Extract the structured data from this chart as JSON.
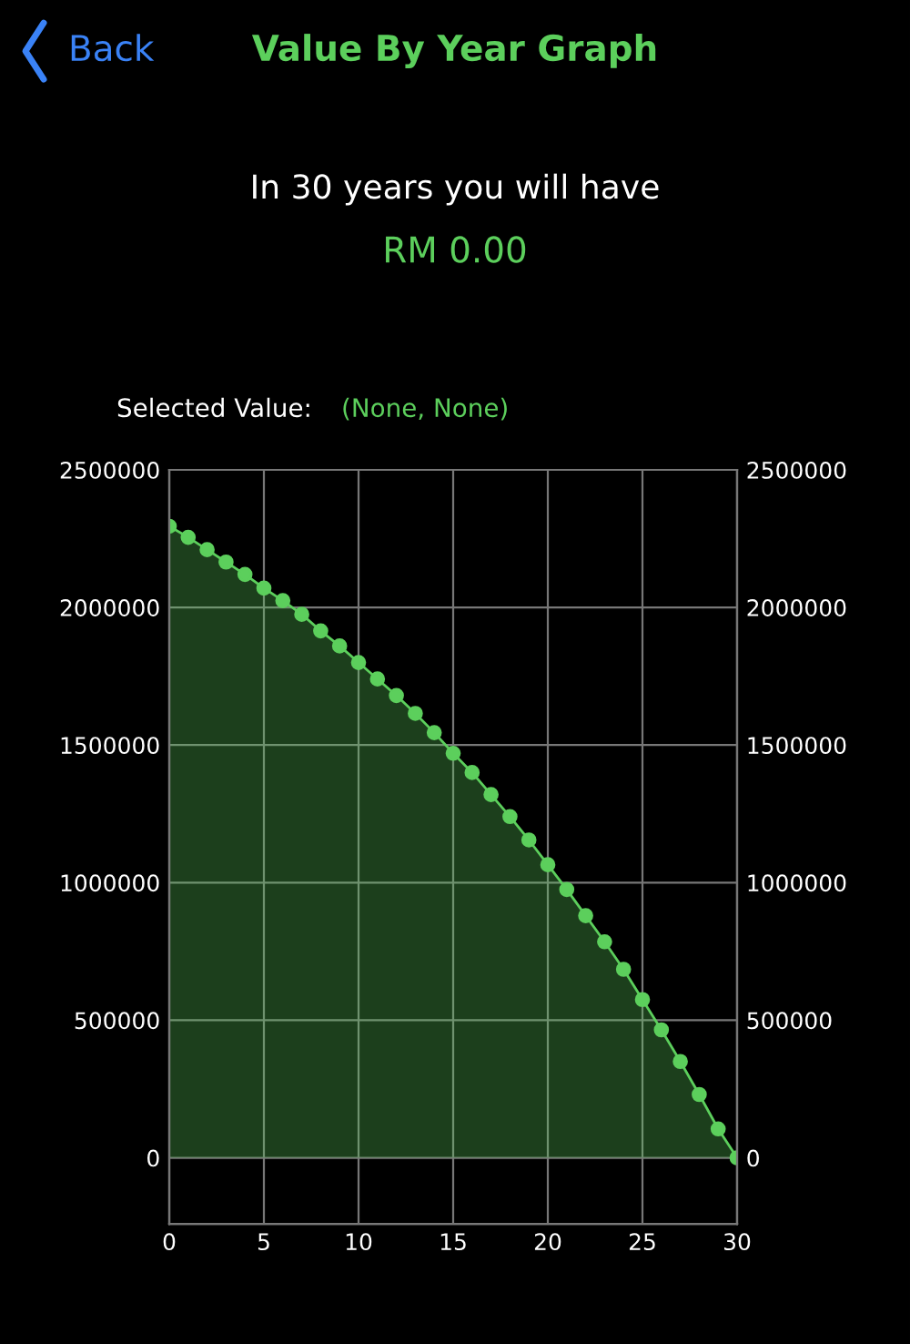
{
  "chart_data": {
    "type": "area",
    "title": "Value By Year Graph",
    "subtitle": "In 30 years you will have",
    "annotations": [
      "Back",
      "RM 0.00",
      "Selected Value:",
      "(None, None)"
    ],
    "x": [
      0,
      1,
      2,
      3,
      4,
      5,
      6,
      7,
      8,
      9,
      10,
      11,
      12,
      13,
      14,
      15,
      16,
      17,
      18,
      19,
      20,
      21,
      22,
      23,
      24,
      25,
      26,
      27,
      28,
      29,
      30
    ],
    "series": [
      {
        "color": "#5ccf5c",
        "values": [
          2295000,
          2255000,
          2210000,
          2165000,
          2120000,
          2070000,
          2025000,
          1975000,
          1915000,
          1860000,
          1800000,
          1740000,
          1680000,
          1615000,
          1545000,
          1470000,
          1400000,
          1320000,
          1240000,
          1155000,
          1065000,
          975000,
          880000,
          785000,
          685000,
          575000,
          465000,
          350000,
          230000,
          105000,
          0
        ]
      }
    ],
    "xlim": [
      0,
      30
    ],
    "xticks": [
      0,
      5,
      10,
      15,
      20,
      25,
      30
    ],
    "ylim": [
      -240000,
      2500000
    ],
    "yticks": [
      0,
      500000,
      1000000,
      1500000,
      2000000,
      2500000
    ],
    "y2lim": [
      -240000,
      2500000
    ],
    "y2ticks": [
      0,
      500000,
      1000000,
      1500000,
      2000000,
      2500000
    ],
    "grid": true,
    "marker": "circle",
    "line_style": "solid",
    "legend": false
  }
}
